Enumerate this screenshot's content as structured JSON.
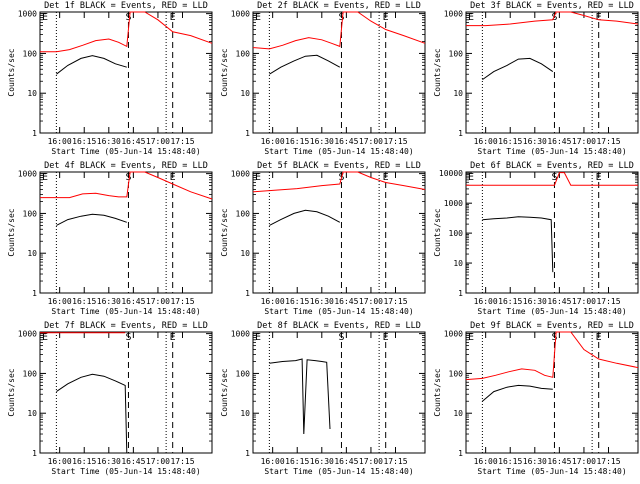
{
  "figure": {
    "xlabel": "Start Time (05-Jun-14 15:48:40)",
    "ylabel": "Counts/sec",
    "x_ticks": [
      "16:00",
      "16:15",
      "16:30",
      "16:45",
      "17:00",
      "17:15"
    ],
    "y_ticks": [
      "1",
      "10",
      "100",
      "1000"
    ],
    "y_ticks_wide": [
      "1",
      "10",
      "100",
      "1000",
      "10000"
    ],
    "colors": {
      "events": "#000000",
      "lld": "#ff0000",
      "axes": "#000000"
    }
  },
  "chart_data": [
    {
      "type": "line",
      "title": "Det 1f BLACK = Events, RED = LLD",
      "ylim": [
        1,
        1100
      ],
      "xlabel": "Start Time (05-Jun-14 15:48:40)",
      "ylabel": "Counts/sec",
      "markers": {
        "E": "15:48",
        "S": "16:42",
        "E2": "17:09"
      },
      "x_range": [
        "15:48",
        "17:33"
      ],
      "series": [
        {
          "name": "Events",
          "x": [
            "15:58",
            "16:05",
            "16:13",
            "16:20",
            "16:27",
            "16:34",
            "16:41"
          ],
          "y": [
            30,
            50,
            75,
            88,
            75,
            55,
            45
          ]
        },
        {
          "name": "LLD",
          "x": [
            "15:48",
            "15:58",
            "16:06",
            "16:14",
            "16:22",
            "16:30",
            "16:36",
            "16:41",
            "16:43",
            "16:52",
            "17:00",
            "17:09",
            "17:20",
            "17:33"
          ],
          "y": [
            110,
            110,
            125,
            160,
            210,
            230,
            190,
            150,
            1100,
            1100,
            700,
            350,
            280,
            180
          ]
        }
      ]
    },
    {
      "type": "line",
      "title": "Det 2f BLACK = Events, RED = LLD",
      "ylim": [
        1,
        1100
      ],
      "xlabel": "Start Time (05-Jun-14 15:48:40)",
      "ylabel": "Counts/sec",
      "markers": {
        "E": "15:48",
        "S": "16:42",
        "E2": "17:09"
      },
      "x_range": [
        "15:48",
        "17:33"
      ],
      "series": [
        {
          "name": "Events",
          "x": [
            "15:58",
            "16:05",
            "16:13",
            "16:20",
            "16:27",
            "16:34",
            "16:41"
          ],
          "y": [
            30,
            45,
            65,
            85,
            90,
            65,
            45
          ]
        },
        {
          "name": "LLD",
          "x": [
            "15:48",
            "15:58",
            "16:06",
            "16:14",
            "16:22",
            "16:30",
            "16:36",
            "16:41",
            "16:43",
            "16:52",
            "17:00",
            "17:09",
            "17:20",
            "17:33"
          ],
          "y": [
            140,
            130,
            160,
            210,
            250,
            220,
            180,
            150,
            1100,
            1100,
            650,
            400,
            280,
            180
          ]
        }
      ]
    },
    {
      "type": "line",
      "title": "Det 3f BLACK = Events, RED = LLD",
      "ylim": [
        1,
        1100
      ],
      "xlabel": "Start Time (05-Jun-14 15:48:40)",
      "ylabel": "Counts/sec",
      "markers": {
        "E": "15:48",
        "S": "16:42",
        "E2": "17:09"
      },
      "x_range": [
        "15:48",
        "17:33"
      ],
      "series": [
        {
          "name": "Events",
          "x": [
            "15:58",
            "16:05",
            "16:13",
            "16:20",
            "16:27",
            "16:34",
            "16:41"
          ],
          "y": [
            22,
            35,
            50,
            72,
            75,
            55,
            35
          ]
        },
        {
          "name": "LLD",
          "x": [
            "15:48",
            "16:00",
            "16:15",
            "16:30",
            "16:41",
            "16:43",
            "16:52",
            "17:00",
            "17:09",
            "17:20",
            "17:33"
          ],
          "y": [
            500,
            500,
            550,
            650,
            700,
            1100,
            1100,
            900,
            700,
            650,
            550
          ]
        }
      ]
    },
    {
      "type": "line",
      "title": "Det 4f BLACK = Events, RED = LLD",
      "ylim": [
        1,
        1100
      ],
      "xlabel": "Start Time (05-Jun-14 15:48:40)",
      "ylabel": "Counts/sec",
      "markers": {
        "E": "15:48",
        "S": "16:42",
        "E2": "17:09"
      },
      "x_range": [
        "15:48",
        "17:33"
      ],
      "series": [
        {
          "name": "Events",
          "x": [
            "15:58",
            "16:05",
            "16:13",
            "16:20",
            "16:27",
            "16:34",
            "16:41"
          ],
          "y": [
            50,
            70,
            85,
            95,
            90,
            75,
            60
          ]
        },
        {
          "name": "LLD",
          "x": [
            "15:48",
            "15:58",
            "16:06",
            "16:14",
            "16:22",
            "16:30",
            "16:36",
            "16:41",
            "16:43",
            "16:52",
            "17:00",
            "17:09",
            "17:20",
            "17:33"
          ],
          "y": [
            250,
            250,
            250,
            310,
            320,
            280,
            260,
            260,
            1100,
            1100,
            800,
            550,
            350,
            230
          ]
        }
      ]
    },
    {
      "type": "line",
      "title": "Det 5f BLACK = Events, RED = LLD",
      "ylim": [
        1,
        1100
      ],
      "xlabel": "Start Time (05-Jun-14 15:48:40)",
      "ylabel": "Counts/sec",
      "markers": {
        "E": "15:48",
        "S": "16:42",
        "E2": "17:09"
      },
      "x_range": [
        "15:48",
        "17:33"
      ],
      "series": [
        {
          "name": "Events",
          "x": [
            "15:58",
            "16:05",
            "16:13",
            "16:20",
            "16:27",
            "16:34",
            "16:41"
          ],
          "y": [
            50,
            70,
            100,
            120,
            110,
            85,
            60
          ]
        },
        {
          "name": "LLD",
          "x": [
            "15:48",
            "16:00",
            "16:15",
            "16:30",
            "16:41",
            "16:43",
            "16:52",
            "17:00",
            "17:09",
            "17:20",
            "17:33"
          ],
          "y": [
            350,
            380,
            420,
            500,
            550,
            1100,
            1100,
            800,
            600,
            500,
            400
          ]
        }
      ]
    },
    {
      "type": "line",
      "title": "Det 6f BLACK = Events, RED = LLD",
      "ylim": [
        1,
        11000
      ],
      "xlabel": "Start Time (05-Jun-14 15:48:40)",
      "ylabel": "Counts/sec",
      "markers": {
        "E": "15:48",
        "S": "16:42",
        "E2": "17:09"
      },
      "x_range": [
        "15:48",
        "17:33"
      ],
      "series": [
        {
          "name": "Events",
          "x": [
            "15:58",
            "16:05",
            "16:13",
            "16:20",
            "16:27",
            "16:34",
            "16:40",
            "16:41"
          ],
          "y": [
            280,
            300,
            320,
            350,
            340,
            320,
            280,
            5
          ]
        },
        {
          "name": "LLD",
          "x": [
            "15:48",
            "16:00",
            "16:20",
            "16:38",
            "16:42",
            "16:45",
            "16:48",
            "16:52",
            "17:33"
          ],
          "y": [
            4000,
            4000,
            4000,
            4000,
            4000,
            10500,
            10500,
            4000,
            4000
          ]
        }
      ]
    },
    {
      "type": "line",
      "title": "Det 7f BLACK = Events, RED = LLD",
      "ylim": [
        1,
        1100
      ],
      "xlabel": "Start Time (05-Jun-14 15:48:40)",
      "ylabel": "Counts/sec",
      "markers": {
        "E": "15:48",
        "S": "16:42",
        "E2": "17:09"
      },
      "x_range": [
        "15:48",
        "17:33"
      ],
      "series": [
        {
          "name": "Events",
          "x": [
            "15:58",
            "16:05",
            "16:13",
            "16:20",
            "16:27",
            "16:34",
            "16:40",
            "16:41"
          ],
          "y": [
            35,
            55,
            80,
            95,
            85,
            65,
            50,
            1
          ]
        },
        {
          "name": "LLD",
          "x": [
            "15:48",
            "16:00",
            "16:20",
            "16:40"
          ],
          "y": [
            1050,
            1050,
            1050,
            1050
          ]
        }
      ]
    },
    {
      "type": "line",
      "title": "Det 8f BLACK = Events, RED = LLD",
      "ylim": [
        1,
        1100
      ],
      "xlabel": "Start Time (05-Jun-14 15:48:40)",
      "ylabel": "Counts/sec",
      "markers": {
        "E": "15:48",
        "S": "16:42",
        "E2": "17:09"
      },
      "x_range": [
        "15:48",
        "17:33"
      ],
      "series": [
        {
          "name": "Events",
          "x": [
            "15:58",
            "16:06",
            "16:14",
            "16:18",
            "16:19",
            "16:21",
            "16:26",
            "16:30",
            "16:33",
            "16:35"
          ],
          "y": [
            180,
            200,
            210,
            230,
            3,
            220,
            210,
            200,
            190,
            4
          ]
        },
        {
          "name": "LLD",
          "x": [],
          "y": []
        }
      ]
    },
    {
      "type": "line",
      "title": "Det 9f BLACK = Events, RED = LLD",
      "ylim": [
        1,
        1100
      ],
      "xlabel": "Start Time (05-Jun-14 15:48:40)",
      "ylabel": "Counts/sec",
      "markers": {
        "E": "15:48",
        "S": "16:42",
        "E2": "17:09"
      },
      "x_range": [
        "15:48",
        "17:33"
      ],
      "series": [
        {
          "name": "Events",
          "x": [
            "15:58",
            "16:05",
            "16:13",
            "16:20",
            "16:27",
            "16:34",
            "16:41"
          ],
          "y": [
            20,
            35,
            45,
            50,
            48,
            42,
            40
          ]
        },
        {
          "name": "LLD",
          "x": [
            "15:48",
            "15:58",
            "16:06",
            "16:14",
            "16:22",
            "16:30",
            "16:36",
            "16:41",
            "16:43",
            "16:52",
            "17:00",
            "17:09",
            "17:20",
            "17:33"
          ],
          "y": [
            70,
            75,
            90,
            110,
            130,
            120,
            90,
            80,
            1100,
            1100,
            400,
            230,
            180,
            140
          ]
        }
      ]
    }
  ]
}
